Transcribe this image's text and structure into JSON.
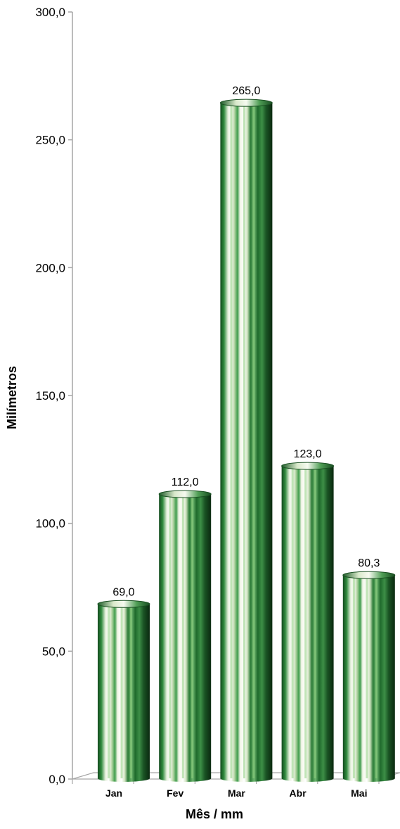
{
  "chart_data": {
    "type": "bar",
    "categories": [
      "Jan",
      "Fev",
      "Mar",
      "Abr",
      "Mai"
    ],
    "values": [
      69.0,
      112.0,
      265.0,
      123.0,
      80.3
    ],
    "data_labels": [
      "69,0",
      "112,0",
      "265,0",
      "123,0",
      "80,3"
    ],
    "y_ticks": [
      0,
      50,
      100,
      150,
      200,
      250,
      300
    ],
    "y_tick_labels": [
      "0,0",
      "50,0",
      "100,0",
      "150,0",
      "200,0",
      "250,0",
      "300,0"
    ],
    "xlabel": "Mês / mm",
    "ylabel": "Milímetros",
    "ylim": [
      0,
      300
    ],
    "grid": false,
    "legend": "none",
    "style": "3d-cylinder",
    "colors": {
      "bar_dark": "#1d5e2a",
      "bar_mid": "#3f9a4c",
      "bar_light": "#f4f8ec",
      "axis": "#a6a6a6"
    }
  }
}
